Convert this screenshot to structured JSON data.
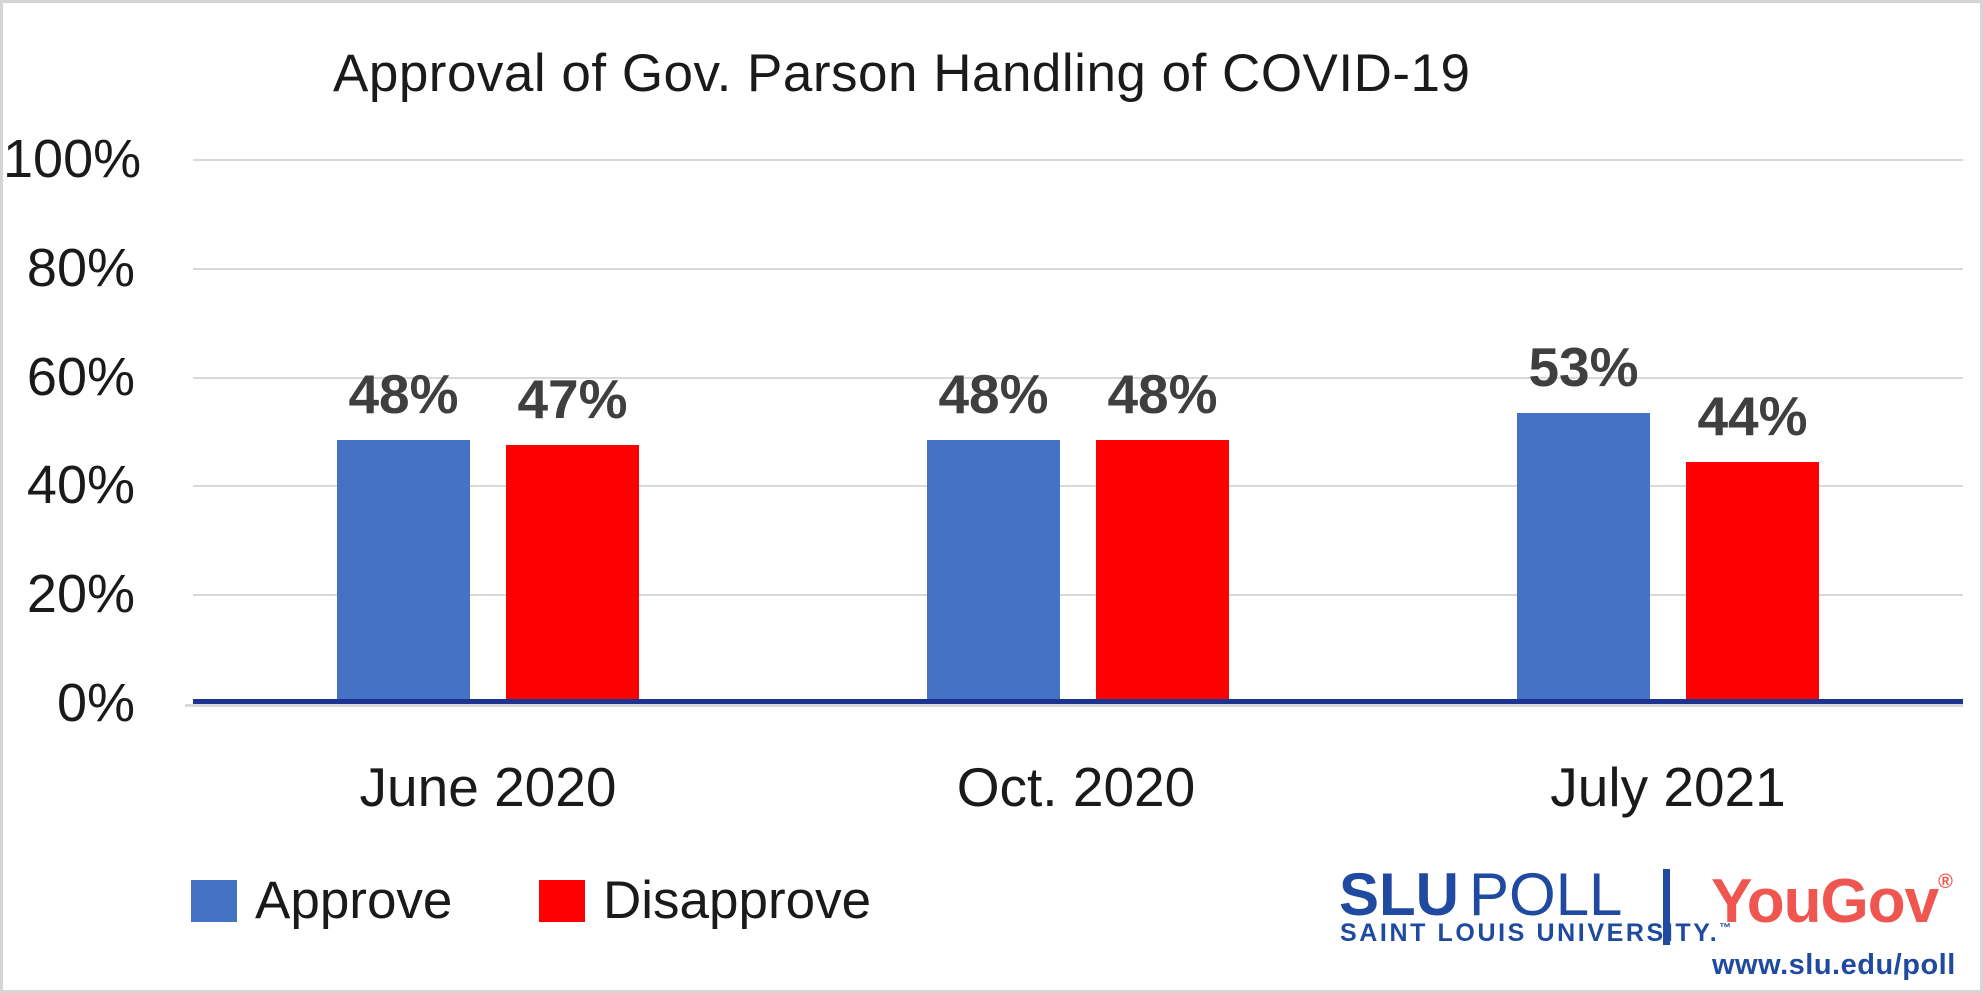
{
  "chart_data": {
    "type": "bar",
    "title": "Approval of Gov. Parson Handling of COVID-19",
    "categories": [
      "June 2020",
      "Oct. 2020",
      "July 2021"
    ],
    "series": [
      {
        "name": "Approve",
        "color": "#4472C4",
        "values": [
          48,
          48,
          53
        ],
        "labels": [
          "48%",
          "48%",
          "53%"
        ]
      },
      {
        "name": "Disapprove",
        "color": "#FF0000",
        "values": [
          47,
          48,
          44
        ],
        "labels": [
          "47%",
          "48%",
          "44%"
        ]
      }
    ],
    "xlabel": "",
    "ylabel": "",
    "ylim": [
      0,
      100
    ],
    "y_axis": {
      "ticks": [
        "100%",
        "80%",
        "60%",
        "40%",
        "20%",
        "0%"
      ],
      "grid": true
    },
    "legend_position": "bottom-left",
    "colors": {
      "gridline": "#d9d9d9",
      "baseline_axis": "#1c3490",
      "data_label": "#3f3f3f",
      "text": "#1a1a1a"
    }
  },
  "branding": {
    "slu": "SLU",
    "poll": "POLL",
    "university": "SAINT LOUIS UNIVERSITY.",
    "trademark": "™",
    "yougov": "YouGov",
    "registered": "®",
    "url": "www.slu.edu/poll",
    "slu_blue": "#1f4aa0",
    "yougov_red": "#ee564f"
  }
}
